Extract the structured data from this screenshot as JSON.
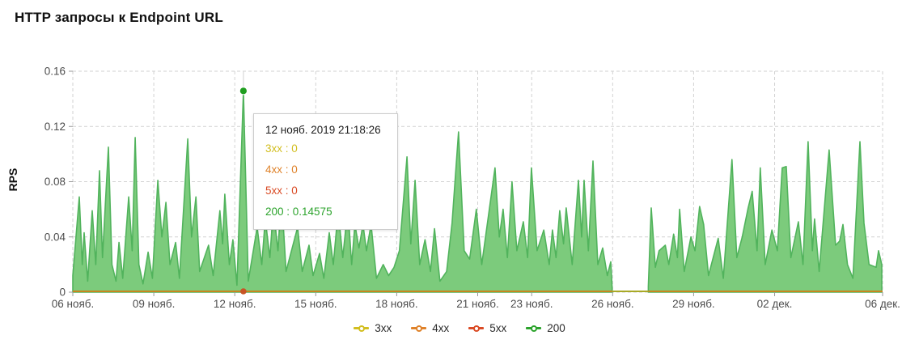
{
  "page": {
    "title": "HTTP запросы к Endpoint URL"
  },
  "y_axis": {
    "label": "RPS"
  },
  "chart_data": {
    "type": "area",
    "title": "HTTP запросы к Endpoint URL",
    "xlabel": "",
    "ylabel": "RPS",
    "ylim": [
      0,
      0.16
    ],
    "yticks": [
      {
        "value": 0,
        "label": "0"
      },
      {
        "value": 0.04,
        "label": "0.04"
      },
      {
        "value": 0.08,
        "label": "0.08"
      },
      {
        "value": 0.12,
        "label": "0.12"
      },
      {
        "value": 0.16,
        "label": "0.16"
      }
    ],
    "x_unit": "days since 06 нояб. 2019",
    "x_range_days": [
      0,
      30
    ],
    "xticks": [
      {
        "day": 0,
        "label": "06 нояб."
      },
      {
        "day": 3,
        "label": "09 нояб."
      },
      {
        "day": 6,
        "label": "12 нояб."
      },
      {
        "day": 9,
        "label": "15 нояб."
      },
      {
        "day": 12,
        "label": "18 нояб."
      },
      {
        "day": 15,
        "label": "21 нояб."
      },
      {
        "day": 17,
        "label": "23 нояб."
      },
      {
        "day": 20,
        "label": "26 нояб."
      },
      {
        "day": 23,
        "label": "29 нояб."
      },
      {
        "day": 26,
        "label": "02 дек."
      },
      {
        "day": 30,
        "label": "06 дек."
      }
    ],
    "grid": "dashed",
    "legend_position": "bottom-center",
    "data_gap_days": [
      19.98,
      21.32
    ],
    "series": [
      {
        "name": "3xx",
        "type": "line",
        "color": "#d2be20",
        "constant_value": 0
      },
      {
        "name": "4xx",
        "type": "line",
        "color": "#df822a",
        "constant_value": 0
      },
      {
        "name": "5xx",
        "type": "line",
        "color": "#da4b25",
        "constant_value": 0
      },
      {
        "name": "200",
        "type": "area",
        "color": "#2ca32c",
        "fill": "#7ccb7c",
        "segments": [
          [
            [
              0,
              0.012
            ],
            [
              0.24,
              0.069
            ],
            [
              0.35,
              0.02
            ],
            [
              0.42,
              0.043
            ],
            [
              0.55,
              0.008
            ],
            [
              0.72,
              0.059
            ],
            [
              0.85,
              0.02
            ],
            [
              0.99,
              0.088
            ],
            [
              1.1,
              0.025
            ],
            [
              1.32,
              0.105
            ],
            [
              1.45,
              0.02
            ],
            [
              1.6,
              0.008
            ],
            [
              1.71,
              0.036
            ],
            [
              1.85,
              0.01
            ],
            [
              2.07,
              0.069
            ],
            [
              2.2,
              0.03
            ],
            [
              2.31,
              0.112
            ],
            [
              2.45,
              0.02
            ],
            [
              2.6,
              0.006
            ],
            [
              2.79,
              0.029
            ],
            [
              2.95,
              0.01
            ],
            [
              3.15,
              0.081
            ],
            [
              3.3,
              0.04
            ],
            [
              3.45,
              0.065
            ],
            [
              3.6,
              0.02
            ],
            [
              3.81,
              0.036
            ],
            [
              3.95,
              0.01
            ],
            [
              4.26,
              0.111
            ],
            [
              4.4,
              0.04
            ],
            [
              4.56,
              0.069
            ],
            [
              4.7,
              0.015
            ],
            [
              5.03,
              0.034
            ],
            [
              5.2,
              0.012
            ],
            [
              5.45,
              0.059
            ],
            [
              5.55,
              0.035
            ],
            [
              5.63,
              0.071
            ],
            [
              5.8,
              0.02
            ],
            [
              5.93,
              0.038
            ],
            [
              6.08,
              0.005
            ],
            [
              6.32,
              0.14575
            ],
            [
              6.5,
              0.008
            ],
            [
              6.83,
              0.047
            ],
            [
              7.0,
              0.02
            ],
            [
              7.13,
              0.053
            ],
            [
              7.3,
              0.025
            ],
            [
              7.43,
              0.061
            ],
            [
              7.6,
              0.03
            ],
            [
              7.73,
              0.071
            ],
            [
              7.9,
              0.015
            ],
            [
              8.33,
              0.047
            ],
            [
              8.5,
              0.015
            ],
            [
              8.75,
              0.034
            ],
            [
              8.9,
              0.012
            ],
            [
              9.14,
              0.028
            ],
            [
              9.3,
              0.01
            ],
            [
              9.5,
              0.043
            ],
            [
              9.65,
              0.02
            ],
            [
              9.83,
              0.059
            ],
            [
              10.0,
              0.025
            ],
            [
              10.19,
              0.061
            ],
            [
              10.33,
              0.02
            ],
            [
              10.45,
              0.049
            ],
            [
              10.6,
              0.032
            ],
            [
              10.75,
              0.049
            ],
            [
              10.88,
              0.03
            ],
            [
              11.05,
              0.049
            ],
            [
              11.25,
              0.01
            ],
            [
              11.5,
              0.02
            ],
            [
              11.7,
              0.012
            ],
            [
              11.9,
              0.018
            ],
            [
              12.1,
              0.03
            ],
            [
              12.38,
              0.098
            ],
            [
              12.52,
              0.035
            ],
            [
              12.68,
              0.081
            ],
            [
              12.85,
              0.02
            ],
            [
              13.05,
              0.038
            ],
            [
              13.25,
              0.015
            ],
            [
              13.4,
              0.046
            ],
            [
              13.6,
              0.008
            ],
            [
              13.85,
              0.015
            ],
            [
              14.05,
              0.05
            ],
            [
              14.29,
              0.116
            ],
            [
              14.5,
              0.03
            ],
            [
              14.7,
              0.024
            ],
            [
              14.95,
              0.06
            ],
            [
              15.15,
              0.02
            ],
            [
              15.64,
              0.09
            ],
            [
              15.8,
              0.04
            ],
            [
              15.94,
              0.06
            ],
            [
              16.1,
              0.025
            ],
            [
              16.27,
              0.08
            ],
            [
              16.45,
              0.03
            ],
            [
              16.69,
              0.051
            ],
            [
              16.85,
              0.025
            ],
            [
              16.99,
              0.09
            ],
            [
              17.2,
              0.03
            ],
            [
              17.45,
              0.045
            ],
            [
              17.65,
              0.02
            ],
            [
              17.77,
              0.045
            ],
            [
              17.9,
              0.025
            ],
            [
              18.04,
              0.059
            ],
            [
              18.18,
              0.035
            ],
            [
              18.28,
              0.061
            ],
            [
              18.5,
              0.02
            ],
            [
              18.73,
              0.081
            ],
            [
              18.85,
              0.04
            ],
            [
              18.94,
              0.081
            ],
            [
              19.1,
              0.03
            ],
            [
              19.27,
              0.095
            ],
            [
              19.45,
              0.02
            ],
            [
              19.63,
              0.032
            ],
            [
              19.8,
              0.012
            ],
            [
              19.93,
              0.022
            ],
            [
              19.98,
              0.003
            ]
          ],
          [
            [
              21.32,
              0.004
            ],
            [
              21.43,
              0.061
            ],
            [
              21.58,
              0.018
            ],
            [
              21.72,
              0.03
            ],
            [
              21.95,
              0.034
            ],
            [
              22.08,
              0.02
            ],
            [
              22.26,
              0.042
            ],
            [
              22.4,
              0.025
            ],
            [
              22.48,
              0.06
            ],
            [
              22.65,
              0.015
            ],
            [
              22.9,
              0.04
            ],
            [
              23.05,
              0.03
            ],
            [
              23.22,
              0.062
            ],
            [
              23.37,
              0.049
            ],
            [
              23.55,
              0.012
            ],
            [
              23.91,
              0.039
            ],
            [
              24.1,
              0.01
            ],
            [
              24.42,
              0.096
            ],
            [
              24.6,
              0.025
            ],
            [
              24.8,
              0.04
            ],
            [
              25.02,
              0.061
            ],
            [
              25.17,
              0.073
            ],
            [
              25.35,
              0.03
            ],
            [
              25.47,
              0.09
            ],
            [
              25.65,
              0.02
            ],
            [
              25.9,
              0.045
            ],
            [
              26.1,
              0.03
            ],
            [
              26.28,
              0.09
            ],
            [
              26.43,
              0.091
            ],
            [
              26.6,
              0.025
            ],
            [
              26.88,
              0.051
            ],
            [
              27.05,
              0.02
            ],
            [
              27.24,
              0.109
            ],
            [
              27.4,
              0.03
            ],
            [
              27.48,
              0.053
            ],
            [
              27.65,
              0.015
            ],
            [
              28.02,
              0.103
            ],
            [
              28.26,
              0.034
            ],
            [
              28.41,
              0.037
            ],
            [
              28.53,
              0.049
            ],
            [
              28.7,
              0.02
            ],
            [
              28.9,
              0.01
            ],
            [
              29.16,
              0.109
            ],
            [
              29.31,
              0.05
            ],
            [
              29.5,
              0.02
            ],
            [
              29.76,
              0.018
            ],
            [
              29.85,
              0.03
            ],
            [
              29.97,
              0.02
            ]
          ]
        ]
      }
    ],
    "hover_point": {
      "series": "200",
      "day": 6.32,
      "value": 0.14575,
      "datetime_label": "12 нояб. 2019 21:18:26"
    }
  },
  "tooltip": {
    "title": "12 нояб. 2019 21:18:26",
    "lines": [
      {
        "series": "3xx",
        "text": "3xx : 0",
        "color": "#d2be20"
      },
      {
        "series": "4xx",
        "text": "4xx : 0",
        "color": "#df822a"
      },
      {
        "series": "5xx",
        "text": "5xx : 0",
        "color": "#da4b25"
      },
      {
        "series": "200",
        "text": "200 : 0.14575",
        "color": "#2ca32c"
      }
    ]
  },
  "legend": {
    "items": [
      {
        "label": "3xx",
        "color": "#d2be20"
      },
      {
        "label": "4xx",
        "color": "#df822a"
      },
      {
        "label": "5xx",
        "color": "#da4b25"
      },
      {
        "label": "200",
        "color": "#2ca32c"
      }
    ]
  },
  "colors": {
    "area_fill": "#7ccb7c",
    "area_stroke": "#51b35c",
    "baseline_orange": "#c8861f",
    "baseline_gap_olive": "#a9a927",
    "grid": "#d2d2d2",
    "tick": "#999999",
    "tick_text": "#4d4d4d",
    "hover_line": "#dcdcdc",
    "hover_dot_green": "#1f9e1f",
    "hover_dot_orange": "#c85426"
  }
}
